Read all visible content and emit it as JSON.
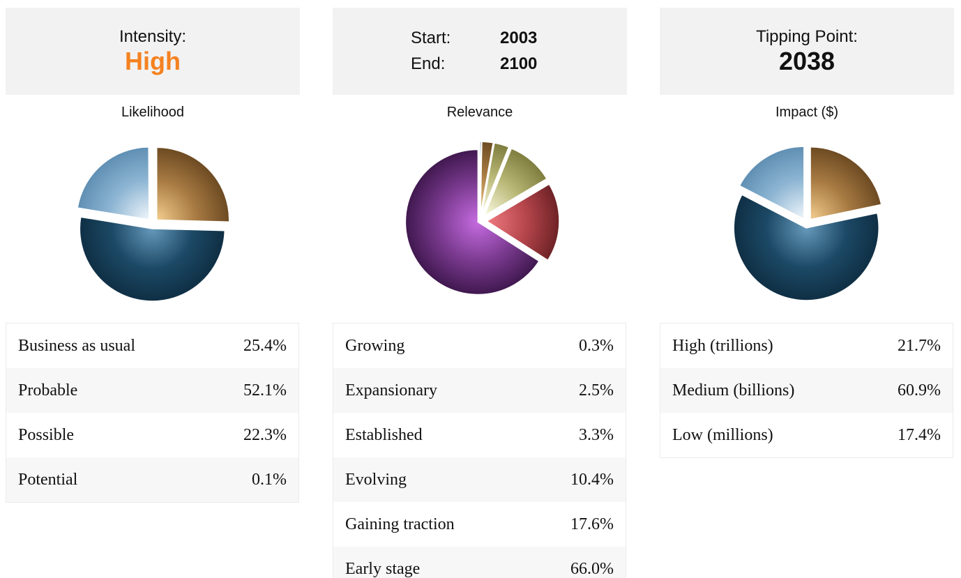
{
  "colors": {
    "accent_orange": "#f58220",
    "header_bg": "#f2f2f2",
    "pie_blue_dark": "#1c4966",
    "pie_blue_light": "#8db5d3",
    "pie_brown": "#a77a42",
    "pie_purple": "#7a3a8f",
    "pie_red": "#b5464c",
    "pie_olive": "#b8b674"
  },
  "intensity": {
    "label": "Intensity:",
    "value": "High"
  },
  "period": {
    "start_label": "Start:",
    "start_value": "2003",
    "end_label": "End:",
    "end_value": "2100"
  },
  "tipping": {
    "label": "Tipping Point:",
    "value": "2038"
  },
  "chart_data": [
    {
      "type": "pie",
      "title": "Likelihood",
      "categories": [
        "Business as usual",
        "Probable",
        "Possible",
        "Potential"
      ],
      "values": [
        25.4,
        52.1,
        22.3,
        0.1
      ],
      "value_labels": [
        "25.4%",
        "52.1%",
        "22.3%",
        "0.1%"
      ]
    },
    {
      "type": "pie",
      "title": "Relevance",
      "categories": [
        "Growing",
        "Expansionary",
        "Established",
        "Evolving",
        "Gaining traction",
        "Early stage"
      ],
      "values": [
        0.3,
        2.5,
        3.3,
        10.4,
        17.6,
        66.0
      ],
      "value_labels": [
        "0.3%",
        "2.5%",
        "3.3%",
        "10.4%",
        "17.6%",
        "66.0%"
      ]
    },
    {
      "type": "pie",
      "title": "Impact ($)",
      "categories": [
        "High (trillions)",
        "Medium (billions)",
        "Low (millions)"
      ],
      "values": [
        21.7,
        60.9,
        17.4
      ],
      "value_labels": [
        "21.7%",
        "60.9%",
        "17.4%"
      ]
    }
  ]
}
